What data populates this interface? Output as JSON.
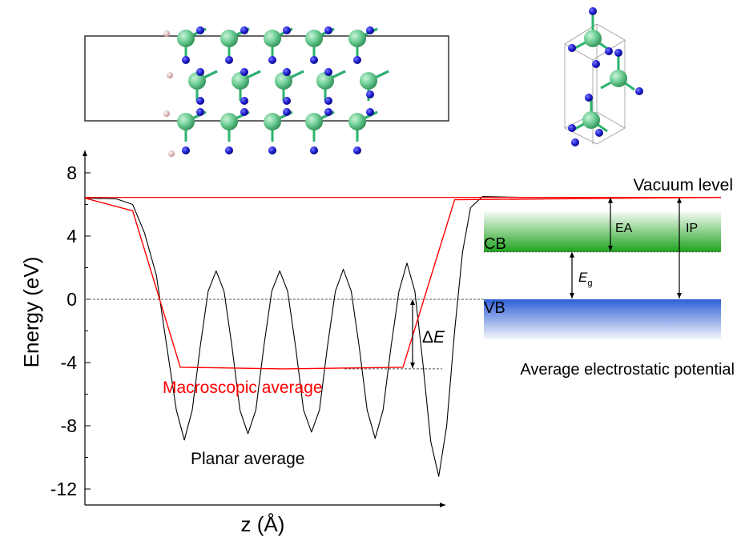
{
  "chart_data": {
    "type": "line",
    "title": "",
    "xlabel": "z (Å)",
    "ylabel": "Energy (eV)",
    "ylim": [
      -13,
      10
    ],
    "yticks": [
      8,
      4,
      0,
      -4,
      -8,
      -12
    ],
    "grid": false,
    "series": [
      {
        "name": "Planar average",
        "color": "#000000",
        "points": [
          [
            0.0,
            6.4
          ],
          [
            0.08,
            6.35
          ],
          [
            0.12,
            6.0
          ],
          [
            0.15,
            4.2
          ],
          [
            0.18,
            1.5
          ],
          [
            0.2,
            -2.0
          ],
          [
            0.23,
            -7.0
          ],
          [
            0.25,
            -8.9
          ],
          [
            0.27,
            -7.0
          ],
          [
            0.29,
            -3.0
          ],
          [
            0.31,
            0.5
          ],
          [
            0.33,
            1.8
          ],
          [
            0.35,
            0.5
          ],
          [
            0.37,
            -3.0
          ],
          [
            0.39,
            -7.0
          ],
          [
            0.41,
            -8.5
          ],
          [
            0.43,
            -7.0
          ],
          [
            0.45,
            -3.0
          ],
          [
            0.47,
            0.5
          ],
          [
            0.49,
            1.8
          ],
          [
            0.51,
            0.5
          ],
          [
            0.53,
            -3.0
          ],
          [
            0.55,
            -7.0
          ],
          [
            0.57,
            -8.4
          ],
          [
            0.59,
            -7.0
          ],
          [
            0.61,
            -3.0
          ],
          [
            0.63,
            0.5
          ],
          [
            0.65,
            1.9
          ],
          [
            0.67,
            0.5
          ],
          [
            0.69,
            -3.0
          ],
          [
            0.71,
            -7.0
          ],
          [
            0.73,
            -8.8
          ],
          [
            0.75,
            -7.0
          ],
          [
            0.77,
            -3.0
          ],
          [
            0.79,
            0.5
          ],
          [
            0.81,
            2.3
          ],
          [
            0.83,
            0.5
          ],
          [
            0.85,
            -4.0
          ],
          [
            0.87,
            -9.0
          ],
          [
            0.89,
            -11.2
          ],
          [
            0.91,
            -8.0
          ],
          [
            0.93,
            -2.0
          ],
          [
            0.95,
            3.0
          ],
          [
            0.97,
            5.8
          ],
          [
            1.0,
            6.5
          ],
          [
            1.1,
            6.45
          ],
          [
            1.6,
            6.45
          ]
        ]
      },
      {
        "name": "Macroscopic average",
        "color": "#ff0000",
        "points": [
          [
            0.0,
            6.4
          ],
          [
            0.12,
            5.6
          ],
          [
            0.24,
            -4.3
          ],
          [
            0.5,
            -4.4
          ],
          [
            0.8,
            -4.3
          ],
          [
            0.93,
            6.3
          ],
          [
            1.6,
            6.45
          ]
        ]
      }
    ],
    "reference_lines": [
      {
        "value": 0,
        "style": "dashed"
      },
      {
        "value": -4.4,
        "label": "Average electrostatic potential",
        "style": "dashed"
      }
    ],
    "annotations": {
      "vacuum_level": "Vacuum level",
      "vacuum_level_value": 6.45,
      "cb_label": "CB",
      "cb_value": 3.0,
      "vb_label": "VB",
      "vb_value": 0,
      "ea_label": "EA",
      "ip_label": "IP",
      "eg_label": "E",
      "eg_sub": "g",
      "delta_e_prefix": "Δ",
      "delta_e_italic": "E",
      "planar_label": "Planar average",
      "macro_label": "Macroscopic average"
    },
    "colors": {
      "cb_band": "#1ea31e",
      "vb_band": "#2e5fd6",
      "atom_large": "#6fcf97",
      "atom_small": "#1a1ad0",
      "atom_h": "#e8b7b7"
    }
  }
}
